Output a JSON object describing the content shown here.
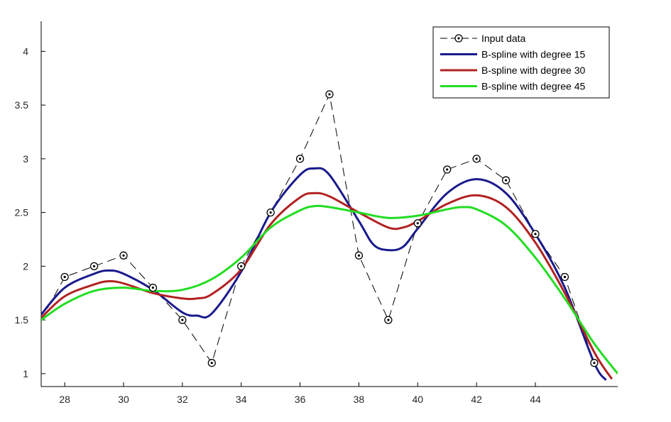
{
  "chart_data": {
    "type": "line",
    "title": "",
    "xlabel": "",
    "ylabel": "",
    "xlim": [
      27.2,
      46.8
    ],
    "ylim": [
      0.88,
      4.28
    ],
    "xticks": [
      28,
      30,
      32,
      34,
      36,
      38,
      40,
      42,
      44
    ],
    "yticks": [
      1,
      1.5,
      2,
      2.5,
      3,
      3.5,
      4
    ],
    "grid": false,
    "legend_position": "top-right",
    "series": [
      {
        "name": "Input data",
        "color": "#000000",
        "style": "dashed-with-circle-markers",
        "x": [
          27.2,
          28,
          29,
          30,
          31,
          32,
          33,
          34,
          35,
          36,
          37,
          38,
          39,
          40,
          41,
          42,
          43,
          44,
          45,
          46
        ],
        "y": [
          1.5,
          1.9,
          2.0,
          2.1,
          1.8,
          1.5,
          1.1,
          2.0,
          2.5,
          3.0,
          3.6,
          2.1,
          1.5,
          2.4,
          2.9,
          3.0,
          2.8,
          2.3,
          1.9,
          1.1
        ]
      },
      {
        "name": "B-spline with degree 15",
        "color": "#1a1a8c",
        "x": [
          27.2,
          28,
          29,
          29.5,
          30,
          31,
          32,
          32.5,
          33,
          34,
          35,
          36,
          36.5,
          37,
          38,
          38.5,
          39,
          39.5,
          40,
          41,
          42,
          43,
          44,
          45,
          46,
          46.4
        ],
        "y": [
          1.55,
          1.8,
          1.93,
          1.96,
          1.93,
          1.78,
          1.57,
          1.54,
          1.56,
          1.95,
          2.5,
          2.85,
          2.91,
          2.85,
          2.42,
          2.2,
          2.15,
          2.18,
          2.35,
          2.68,
          2.81,
          2.68,
          2.3,
          1.8,
          1.1,
          0.94
        ]
      },
      {
        "name": "B-spline with degree 30",
        "color": "#b22222",
        "x": [
          27.2,
          28,
          29,
          29.5,
          30,
          31,
          32,
          32.5,
          33,
          34,
          35,
          36,
          36.5,
          37,
          38,
          39,
          39.5,
          40,
          41,
          42,
          43,
          44,
          45,
          46,
          46.6
        ],
        "y": [
          1.52,
          1.72,
          1.83,
          1.86,
          1.84,
          1.75,
          1.7,
          1.7,
          1.74,
          1.97,
          2.39,
          2.64,
          2.68,
          2.65,
          2.5,
          2.36,
          2.36,
          2.42,
          2.58,
          2.66,
          2.55,
          2.22,
          1.75,
          1.2,
          0.95
        ]
      },
      {
        "name": "B-spline with degree 45",
        "color": "#22dd22",
        "x": [
          27.2,
          28,
          29,
          30,
          31,
          32,
          33,
          34,
          35,
          36,
          36.5,
          37,
          38,
          39,
          40,
          41,
          41.5,
          42,
          43,
          44,
          45,
          46,
          46.8
        ],
        "y": [
          1.5,
          1.65,
          1.77,
          1.8,
          1.77,
          1.78,
          1.88,
          2.08,
          2.36,
          2.52,
          2.56,
          2.55,
          2.5,
          2.45,
          2.47,
          2.53,
          2.55,
          2.53,
          2.38,
          2.08,
          1.7,
          1.28,
          1.0
        ]
      }
    ]
  }
}
